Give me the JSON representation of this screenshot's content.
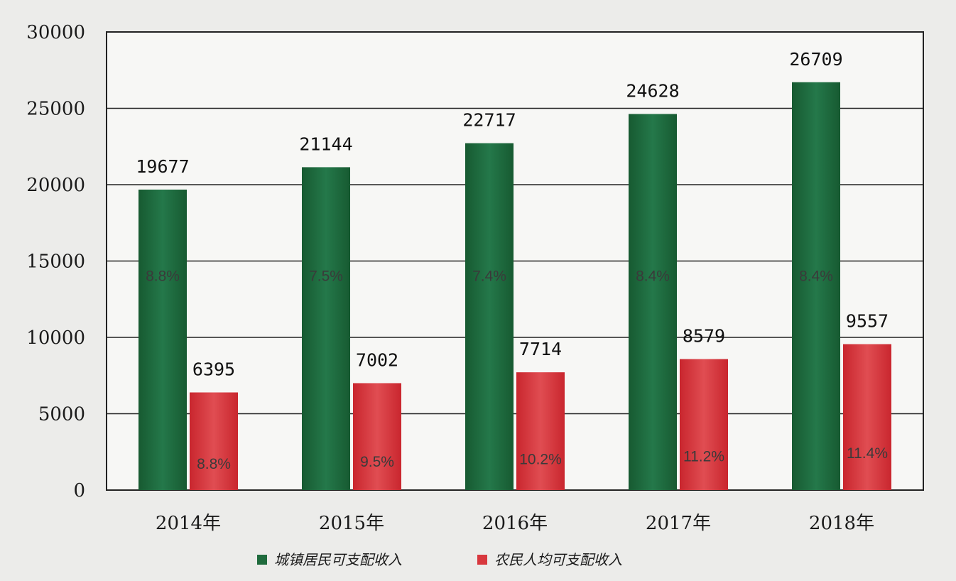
{
  "chart_data": {
    "type": "bar",
    "categories": [
      "2014年",
      "2015年",
      "2016年",
      "2017年",
      "2018年"
    ],
    "series": [
      {
        "name": "城镇居民可支配收入",
        "values": [
          19677,
          21144,
          22717,
          24628,
          26709
        ],
        "growth_labels": [
          "8.8%",
          "7.5%",
          "7.4%",
          "8.4%",
          "8.4%"
        ],
        "color": "#1f6b3d"
      },
      {
        "name": "农民人均可支配收入",
        "values": [
          6395,
          7002,
          7714,
          8579,
          9557
        ],
        "growth_labels": [
          "8.8%",
          "9.5%",
          "10.2%",
          "11.2%",
          "11.4%"
        ],
        "color": "#d8383e"
      }
    ],
    "y_ticks": [
      "0",
      "5000",
      "10000",
      "15000",
      "20000",
      "25000",
      "30000"
    ],
    "ylim": [
      0,
      30000
    ],
    "grid": true,
    "legend_position": "bottom-center"
  }
}
